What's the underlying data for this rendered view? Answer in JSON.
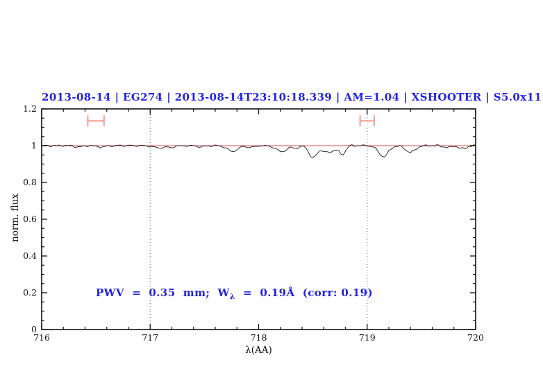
{
  "title": "2013-08-14 | EG274 | 2013-08-14T23:10:18.339 | AM=1.04 | XSHOOTER | S5.0x11",
  "annotation": {
    "part1": "PWV  =  0.35  mm;  W",
    "sub": "λ",
    "part2": "  =  0.19Å  (corr: 0.19)"
  },
  "colors": {
    "accent_blue": "#2222dd",
    "model_red": "#d94f4f",
    "marker_pink": "#f09a9a",
    "spectrum_black": "#1a1a1a",
    "grid_gray": "#555555",
    "frame_black": "#111111"
  },
  "chart_data": {
    "type": "line",
    "title": "2013-08-14 | EG274 | 2013-08-14T23:10:18.339 | AM=1.04 | XSHOOTER | S5.0x11",
    "xlabel": "λ(AA)",
    "ylabel": "norm. flux",
    "xlim": [
      716,
      720
    ],
    "ylim": [
      0,
      1.2
    ],
    "xticks": [
      716,
      717,
      718,
      719,
      720
    ],
    "yticks": [
      0,
      0.2,
      0.4,
      0.6,
      0.8,
      1,
      1.2
    ],
    "ytick_labels": [
      "0",
      "0.2",
      "0.4",
      "0.6",
      "0.8",
      "1",
      "1.2"
    ],
    "x_minor_step": 0.2,
    "y_minor_step": 0.05,
    "grid": "dotted vertical lines only",
    "legend": "none",
    "dotted_gridlines_x": [
      717,
      719
    ],
    "pwv_mm": 0.35,
    "w_lambda_angstrom": 0.19,
    "corr": 0.19,
    "series": [
      {
        "name": "observed-spectrum",
        "style": "noisy continuum with absorption lines",
        "continuum": 1.0,
        "sample_step": 0.02,
        "noise_sines": [
          [
            0.0032,
            0.113,
            0.0
          ],
          [
            0.0022,
            0.057,
            1.7
          ],
          [
            0.0013,
            0.031,
            0.4
          ]
        ],
        "noise_hash_amp": 0.0015,
        "absorption_lines": [
          {
            "center": 716.34,
            "depth": 0.008,
            "sigma": 0.035
          },
          {
            "center": 716.56,
            "depth": 0.007,
            "sigma": 0.04
          },
          {
            "center": 717.08,
            "depth": 0.013,
            "sigma": 0.045
          },
          {
            "center": 717.19,
            "depth": 0.009,
            "sigma": 0.03
          },
          {
            "center": 717.47,
            "depth": 0.006,
            "sigma": 0.03
          },
          {
            "center": 717.76,
            "depth": 0.032,
            "sigma": 0.045
          },
          {
            "center": 717.92,
            "depth": 0.01,
            "sigma": 0.035
          },
          {
            "center": 718.21,
            "depth": 0.032,
            "sigma": 0.05
          },
          {
            "center": 718.35,
            "depth": 0.013,
            "sigma": 0.03
          },
          {
            "center": 718.5,
            "depth": 0.066,
            "sigma": 0.035
          },
          {
            "center": 718.64,
            "depth": 0.038,
            "sigma": 0.055
          },
          {
            "center": 718.77,
            "depth": 0.048,
            "sigma": 0.028
          },
          {
            "center": 719.15,
            "depth": 0.06,
            "sigma": 0.045
          },
          {
            "center": 719.4,
            "depth": 0.036,
            "sigma": 0.045
          },
          {
            "center": 719.74,
            "depth": 0.011,
            "sigma": 0.03
          },
          {
            "center": 719.88,
            "depth": 0.017,
            "sigma": 0.035
          }
        ]
      },
      {
        "name": "telluric-model",
        "style": "flat line",
        "continuum": 1.0
      }
    ],
    "line_markers": [
      {
        "center": 716.5,
        "half_width": 0.075,
        "flux": 1.135,
        "cap_half_height": 0.03
      },
      {
        "center": 719.0,
        "half_width": 0.065,
        "flux": 1.135,
        "cap_half_height": 0.03
      }
    ]
  }
}
